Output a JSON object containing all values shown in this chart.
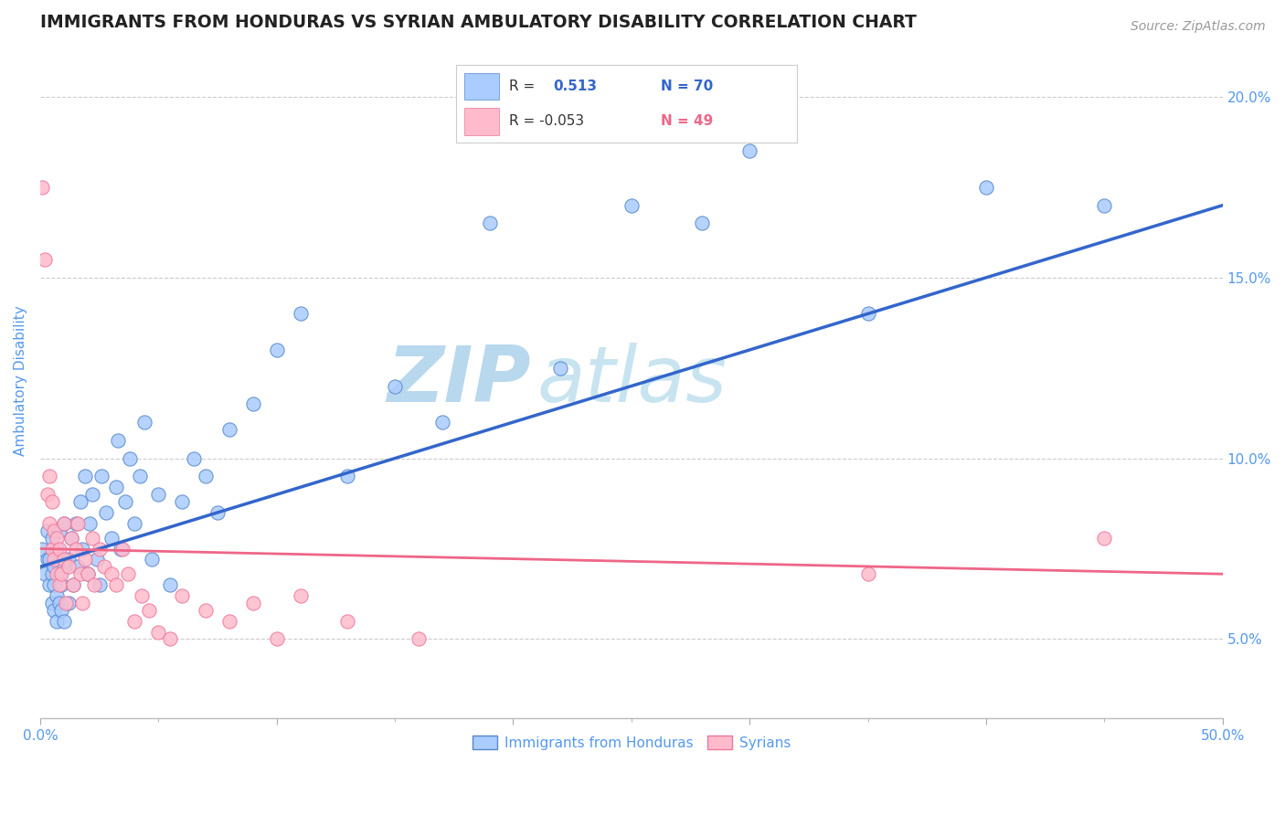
{
  "title": "IMMIGRANTS FROM HONDURAS VS SYRIAN AMBULATORY DISABILITY CORRELATION CHART",
  "source_text": "Source: ZipAtlas.com",
  "ylabel": "Ambulatory Disability",
  "xlim": [
    0.0,
    0.5
  ],
  "ylim": [
    0.028,
    0.215
  ],
  "xticks": [
    0.0,
    0.1,
    0.2,
    0.3,
    0.4,
    0.5
  ],
  "xtick_labels_show": [
    "0.0%",
    "",
    "",
    "",
    "",
    "50.0%"
  ],
  "yticks": [
    0.05,
    0.1,
    0.15,
    0.2
  ],
  "ytick_labels": [
    "5.0%",
    "10.0%",
    "15.0%",
    "20.0%"
  ],
  "title_color": "#222222",
  "title_fontsize": 13.5,
  "axis_label_color": "#5599ee",
  "tick_color": "#5599ee",
  "grid_color": "#cccccc",
  "watermark_zip_color": "#b8d8ee",
  "watermark_atlas_color": "#c8e4f0",
  "blue_color": "#aaccff",
  "blue_edge_color": "#5588cc",
  "pink_color": "#ffbbcc",
  "pink_edge_color": "#ee7799",
  "blue_line_color": "#3366cc",
  "pink_line_color": "#ee6688",
  "blue_scatter": [
    [
      0.001,
      0.075
    ],
    [
      0.002,
      0.068
    ],
    [
      0.003,
      0.072
    ],
    [
      0.003,
      0.08
    ],
    [
      0.004,
      0.065
    ],
    [
      0.004,
      0.072
    ],
    [
      0.005,
      0.06
    ],
    [
      0.005,
      0.068
    ],
    [
      0.005,
      0.078
    ],
    [
      0.006,
      0.058
    ],
    [
      0.006,
      0.065
    ],
    [
      0.006,
      0.07
    ],
    [
      0.007,
      0.055
    ],
    [
      0.007,
      0.062
    ],
    [
      0.007,
      0.075
    ],
    [
      0.008,
      0.06
    ],
    [
      0.008,
      0.068
    ],
    [
      0.008,
      0.08
    ],
    [
      0.009,
      0.058
    ],
    [
      0.009,
      0.065
    ],
    [
      0.01,
      0.055
    ],
    [
      0.01,
      0.07
    ],
    [
      0.01,
      0.082
    ],
    [
      0.012,
      0.06
    ],
    [
      0.012,
      0.072
    ],
    [
      0.013,
      0.078
    ],
    [
      0.014,
      0.065
    ],
    [
      0.015,
      0.082
    ],
    [
      0.016,
      0.07
    ],
    [
      0.017,
      0.088
    ],
    [
      0.018,
      0.075
    ],
    [
      0.019,
      0.095
    ],
    [
      0.02,
      0.068
    ],
    [
      0.021,
      0.082
    ],
    [
      0.022,
      0.09
    ],
    [
      0.024,
      0.072
    ],
    [
      0.025,
      0.065
    ],
    [
      0.026,
      0.095
    ],
    [
      0.028,
      0.085
    ],
    [
      0.03,
      0.078
    ],
    [
      0.032,
      0.092
    ],
    [
      0.033,
      0.105
    ],
    [
      0.034,
      0.075
    ],
    [
      0.036,
      0.088
    ],
    [
      0.038,
      0.1
    ],
    [
      0.04,
      0.082
    ],
    [
      0.042,
      0.095
    ],
    [
      0.044,
      0.11
    ],
    [
      0.047,
      0.072
    ],
    [
      0.05,
      0.09
    ],
    [
      0.055,
      0.065
    ],
    [
      0.06,
      0.088
    ],
    [
      0.065,
      0.1
    ],
    [
      0.07,
      0.095
    ],
    [
      0.075,
      0.085
    ],
    [
      0.08,
      0.108
    ],
    [
      0.09,
      0.115
    ],
    [
      0.1,
      0.13
    ],
    [
      0.11,
      0.14
    ],
    [
      0.13,
      0.095
    ],
    [
      0.15,
      0.12
    ],
    [
      0.17,
      0.11
    ],
    [
      0.19,
      0.165
    ],
    [
      0.22,
      0.125
    ],
    [
      0.25,
      0.17
    ],
    [
      0.28,
      0.165
    ],
    [
      0.3,
      0.185
    ],
    [
      0.35,
      0.14
    ],
    [
      0.4,
      0.175
    ],
    [
      0.45,
      0.17
    ]
  ],
  "pink_scatter": [
    [
      0.001,
      0.175
    ],
    [
      0.002,
      0.155
    ],
    [
      0.003,
      0.09
    ],
    [
      0.004,
      0.082
    ],
    [
      0.004,
      0.095
    ],
    [
      0.005,
      0.075
    ],
    [
      0.005,
      0.088
    ],
    [
      0.006,
      0.072
    ],
    [
      0.006,
      0.08
    ],
    [
      0.007,
      0.068
    ],
    [
      0.007,
      0.078
    ],
    [
      0.008,
      0.065
    ],
    [
      0.008,
      0.075
    ],
    [
      0.009,
      0.068
    ],
    [
      0.01,
      0.072
    ],
    [
      0.01,
      0.082
    ],
    [
      0.011,
      0.06
    ],
    [
      0.012,
      0.07
    ],
    [
      0.013,
      0.078
    ],
    [
      0.014,
      0.065
    ],
    [
      0.015,
      0.075
    ],
    [
      0.016,
      0.082
    ],
    [
      0.017,
      0.068
    ],
    [
      0.018,
      0.06
    ],
    [
      0.019,
      0.072
    ],
    [
      0.02,
      0.068
    ],
    [
      0.022,
      0.078
    ],
    [
      0.023,
      0.065
    ],
    [
      0.025,
      0.075
    ],
    [
      0.027,
      0.07
    ],
    [
      0.03,
      0.068
    ],
    [
      0.032,
      0.065
    ],
    [
      0.035,
      0.075
    ],
    [
      0.037,
      0.068
    ],
    [
      0.04,
      0.055
    ],
    [
      0.043,
      0.062
    ],
    [
      0.046,
      0.058
    ],
    [
      0.05,
      0.052
    ],
    [
      0.055,
      0.05
    ],
    [
      0.06,
      0.062
    ],
    [
      0.07,
      0.058
    ],
    [
      0.08,
      0.055
    ],
    [
      0.09,
      0.06
    ],
    [
      0.1,
      0.05
    ],
    [
      0.11,
      0.062
    ],
    [
      0.13,
      0.055
    ],
    [
      0.16,
      0.05
    ],
    [
      0.35,
      0.068
    ],
    [
      0.45,
      0.078
    ]
  ],
  "blue_line": [
    [
      0.0,
      0.07
    ],
    [
      0.5,
      0.17
    ]
  ],
  "pink_line": [
    [
      0.0,
      0.075
    ],
    [
      0.5,
      0.068
    ]
  ]
}
